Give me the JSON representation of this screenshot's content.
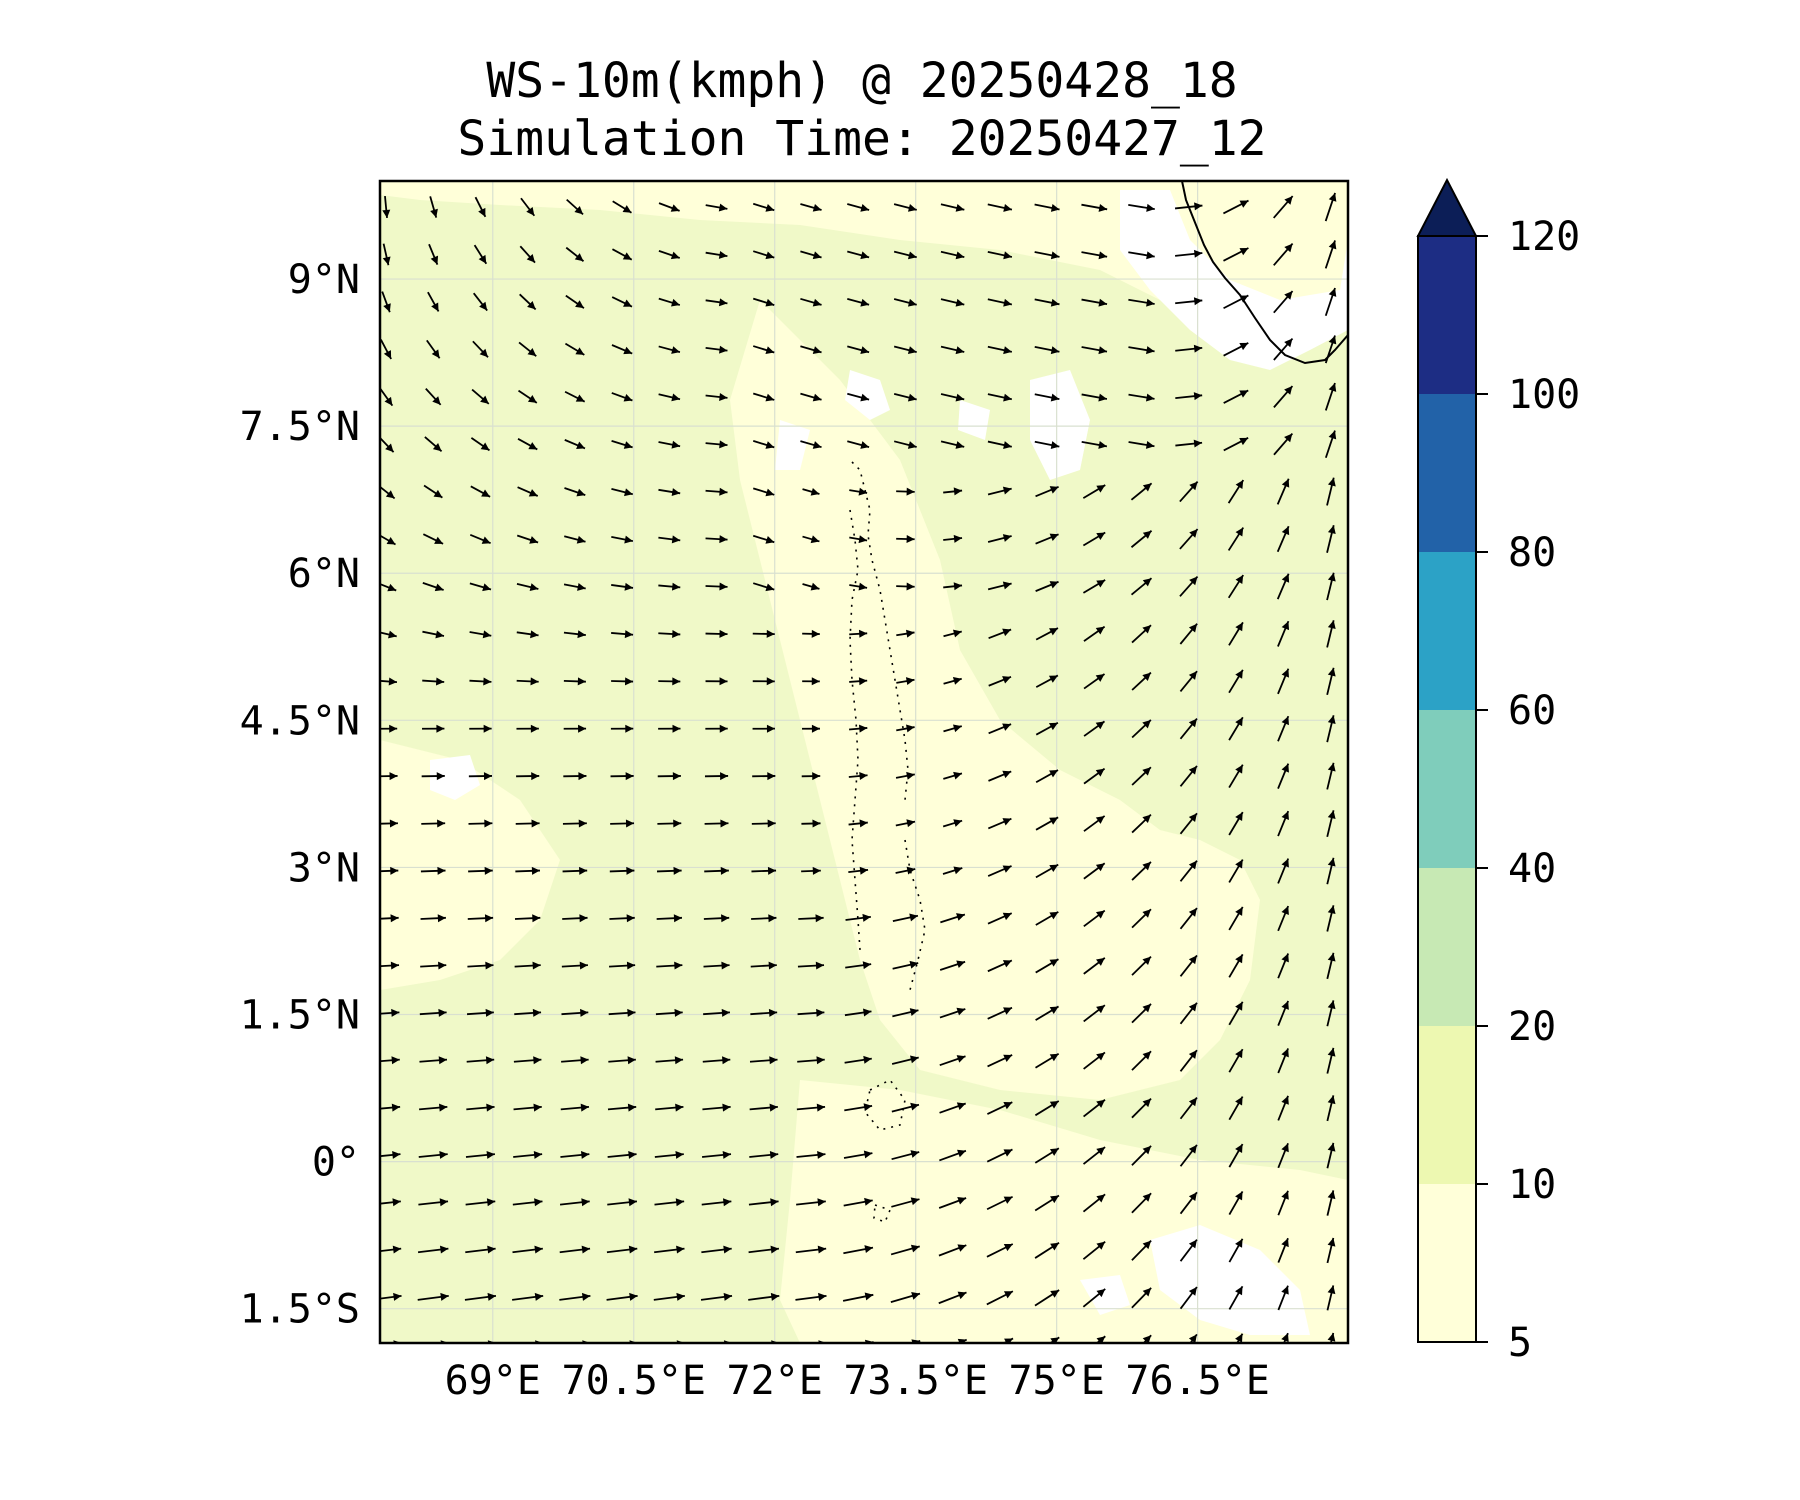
{
  "title": {
    "line1": "WS-10m(kmph) @ 20250428_18",
    "line2": "Simulation Time: 20250427_12"
  },
  "map": {
    "lon_range": [
      67.8,
      78.1
    ],
    "lat_range": [
      -1.85,
      10.0
    ],
    "background_color": "#f0f9c8",
    "calm_color": "#ffffff",
    "coast_color": "#000000",
    "gridline_color": "#d9e0d0",
    "x_ticks": [
      {
        "value": 69,
        "label": "69°E"
      },
      {
        "value": 70.5,
        "label": "70.5°E"
      },
      {
        "value": 72,
        "label": "72°E"
      },
      {
        "value": 73.5,
        "label": "73.5°E"
      },
      {
        "value": 75,
        "label": "75°E"
      },
      {
        "value": 76.5,
        "label": "76.5°E"
      }
    ],
    "y_ticks": [
      {
        "value": 9,
        "label": "9°N"
      },
      {
        "value": 7.5,
        "label": "7.5°N"
      },
      {
        "value": 6,
        "label": "6°N"
      },
      {
        "value": 4.5,
        "label": "4.5°N"
      },
      {
        "value": 3,
        "label": "3°N"
      },
      {
        "value": 1.5,
        "label": "1.5°N"
      },
      {
        "value": 0,
        "label": "0°"
      },
      {
        "value": -1.5,
        "label": "1.5°S"
      }
    ]
  },
  "colorbar": {
    "levels": [
      {
        "label": "5",
        "value": 5
      },
      {
        "label": "10",
        "value": 10
      },
      {
        "label": "20",
        "value": 20
      },
      {
        "label": "40",
        "value": 40
      },
      {
        "label": "60",
        "value": 60
      },
      {
        "label": "80",
        "value": 80
      },
      {
        "label": "100",
        "value": 100
      },
      {
        "label": "120",
        "value": 120
      }
    ],
    "colors": [
      "#ffffd9",
      "#edf8b1",
      "#c7e9b4",
      "#7fcdbb",
      "#2ca2c6",
      "#2262a8",
      "#1d2d84"
    ],
    "extend_color": "#0c1e57"
  }
}
